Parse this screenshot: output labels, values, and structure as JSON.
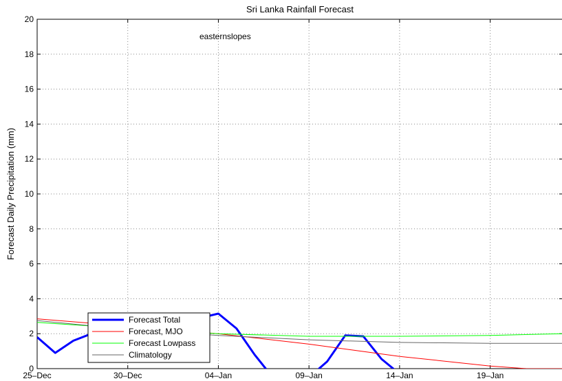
{
  "chart_data": {
    "type": "line",
    "title": "Sri Lanka Rainfall Forecast",
    "xlabel": "",
    "ylabel": "Forecast Daily Precipitation (mm)",
    "annotation": "easternslopes",
    "xlim": [
      "2015-12-25",
      "2016-01-23"
    ],
    "ylim": [
      0,
      20
    ],
    "x_ticks": [
      {
        "date": "2015-12-25",
        "label": "25–Dec"
      },
      {
        "date": "2015-12-30",
        "label": "30–Dec"
      },
      {
        "date": "2016-01-04",
        "label": "04–Jan"
      },
      {
        "date": "2016-01-09",
        "label": "09–Jan"
      },
      {
        "date": "2016-01-14",
        "label": "14–Jan"
      },
      {
        "date": "2016-01-19",
        "label": "19–Jan"
      }
    ],
    "y_ticks": [
      0,
      2,
      4,
      6,
      8,
      10,
      12,
      14,
      16,
      18,
      20
    ],
    "grid": true,
    "legend_position": "bottom-left",
    "series": [
      {
        "name": "Forecast Total",
        "color": "#0000ff",
        "x": [
          "2015-12-25",
          "2015-12-26",
          "2015-12-27",
          "2015-12-28",
          "2015-12-29",
          "2016-01-03",
          "2016-01-04",
          "2016-01-05",
          "2016-01-06",
          "2016-01-07",
          "2016-01-09",
          "2016-01-10",
          "2016-01-11",
          "2016-01-12",
          "2016-01-13",
          "2016-01-14"
        ],
        "values": [
          1.8,
          0.9,
          1.6,
          2.0,
          2.2,
          2.9,
          3.15,
          2.3,
          0.8,
          -0.5,
          -0.5,
          0.4,
          1.9,
          1.85,
          0.55,
          -0.3
        ]
      },
      {
        "name": "Forecast, MJO",
        "color": "#ff0000",
        "x": [
          "2015-12-25",
          "2016-01-04",
          "2016-01-09",
          "2016-01-14",
          "2016-01-19",
          "2016-01-21",
          "2016-01-23"
        ],
        "values": [
          2.85,
          2.0,
          1.4,
          0.7,
          0.15,
          0.0,
          0.0
        ]
      },
      {
        "name": "Forecast Lowpass",
        "color": "#00ff00",
        "x": [
          "2015-12-25",
          "2015-12-30",
          "2016-01-04",
          "2016-01-09",
          "2016-01-14",
          "2016-01-19",
          "2016-01-23"
        ],
        "values": [
          2.65,
          2.3,
          2.0,
          1.85,
          1.85,
          1.9,
          2.0
        ]
      },
      {
        "name": "Climatology",
        "color": "#666666",
        "x": [
          "2015-12-25",
          "2015-12-30",
          "2016-01-04",
          "2016-01-09",
          "2016-01-14",
          "2016-01-19",
          "2016-01-23"
        ],
        "values": [
          2.75,
          2.25,
          1.9,
          1.65,
          1.5,
          1.45,
          1.45
        ]
      }
    ]
  }
}
